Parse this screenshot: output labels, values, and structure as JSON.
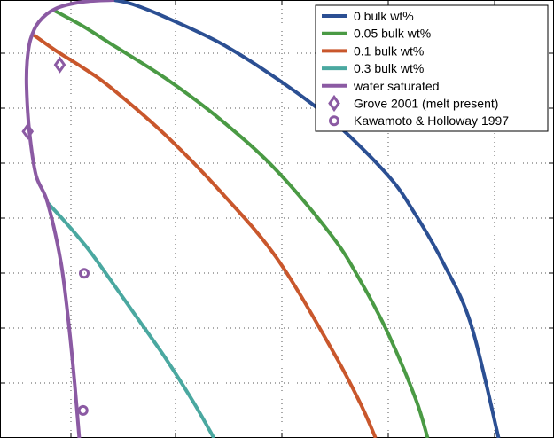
{
  "chart_data": {
    "type": "line",
    "title": "",
    "xlabel": "",
    "ylabel": "",
    "xlim": [
      0,
      100
    ],
    "ylim": [
      0,
      100
    ],
    "grid": true,
    "legend_position": "top-right",
    "series": [
      {
        "name": "0 bulk wt%",
        "color": "#2b4f93",
        "x": [
          20.6,
          24.0,
          30.0,
          40.0,
          50.0,
          60.0,
          70.0,
          75.0,
          80.0,
          85.0,
          90.0
        ],
        "y": [
          100.0,
          99.0,
          96.0,
          90.0,
          82.0,
          72.5,
          60.0,
          51.0,
          40.0,
          26.0,
          0.0
        ]
      },
      {
        "name": "0.05 bulk wt%",
        "color": "#4a9a44",
        "x": [
          9.8,
          15.0,
          20.0,
          30.0,
          40.0,
          50.0,
          60.0,
          65.0,
          70.0,
          75.0,
          77.2
        ],
        "y": [
          97.6,
          94.0,
          90.0,
          82.0,
          72.5,
          61.0,
          46.0,
          36.0,
          24.0,
          9.0,
          0.0
        ]
      },
      {
        "name": "0.1 bulk wt%",
        "color": "#c9572c",
        "x": [
          6.1,
          10.0,
          15.0,
          20.0,
          30.0,
          40.0,
          50.0,
          60.0,
          65.0,
          67.8
        ],
        "y": [
          92.0,
          88.5,
          84.5,
          80.0,
          69.0,
          56.0,
          41.0,
          20.0,
          8.0,
          0.0
        ]
      },
      {
        "name": "0.3 bulk wt%",
        "color": "#4aa8a0",
        "x": [
          8.6,
          12.0,
          16.0,
          20.0,
          25.0,
          30.0,
          35.0,
          38.6
        ],
        "y": [
          53.7,
          49.0,
          43.0,
          36.0,
          27.0,
          18.0,
          8.0,
          0.0
        ]
      },
      {
        "name": "water saturated",
        "color": "#8b5aa3",
        "x": [
          20.6,
          15.0,
          10.0,
          7.0,
          5.5,
          4.9,
          4.8,
          5.3,
          6.5,
          8.6,
          11.0,
          12.5,
          13.5,
          14.3
        ],
        "y": [
          100.0,
          99.6,
          98.0,
          95.0,
          91.0,
          86.0,
          80.0,
          70.0,
          60.0,
          53.7,
          40.0,
          25.0,
          12.0,
          0.0
        ]
      }
    ],
    "markers": [
      {
        "name": "Grove 2001 (melt present)",
        "shape": "diamond",
        "color": "#8b5aa3",
        "points": [
          [
            10.8,
            85.2
          ],
          [
            5.0,
            70.0
          ]
        ]
      },
      {
        "name": "Kawamoto & Holloway 1997",
        "shape": "circle",
        "color": "#8b5aa3",
        "points": [
          [
            15.2,
            37.6
          ],
          [
            15.0,
            6.3
          ]
        ]
      }
    ]
  }
}
